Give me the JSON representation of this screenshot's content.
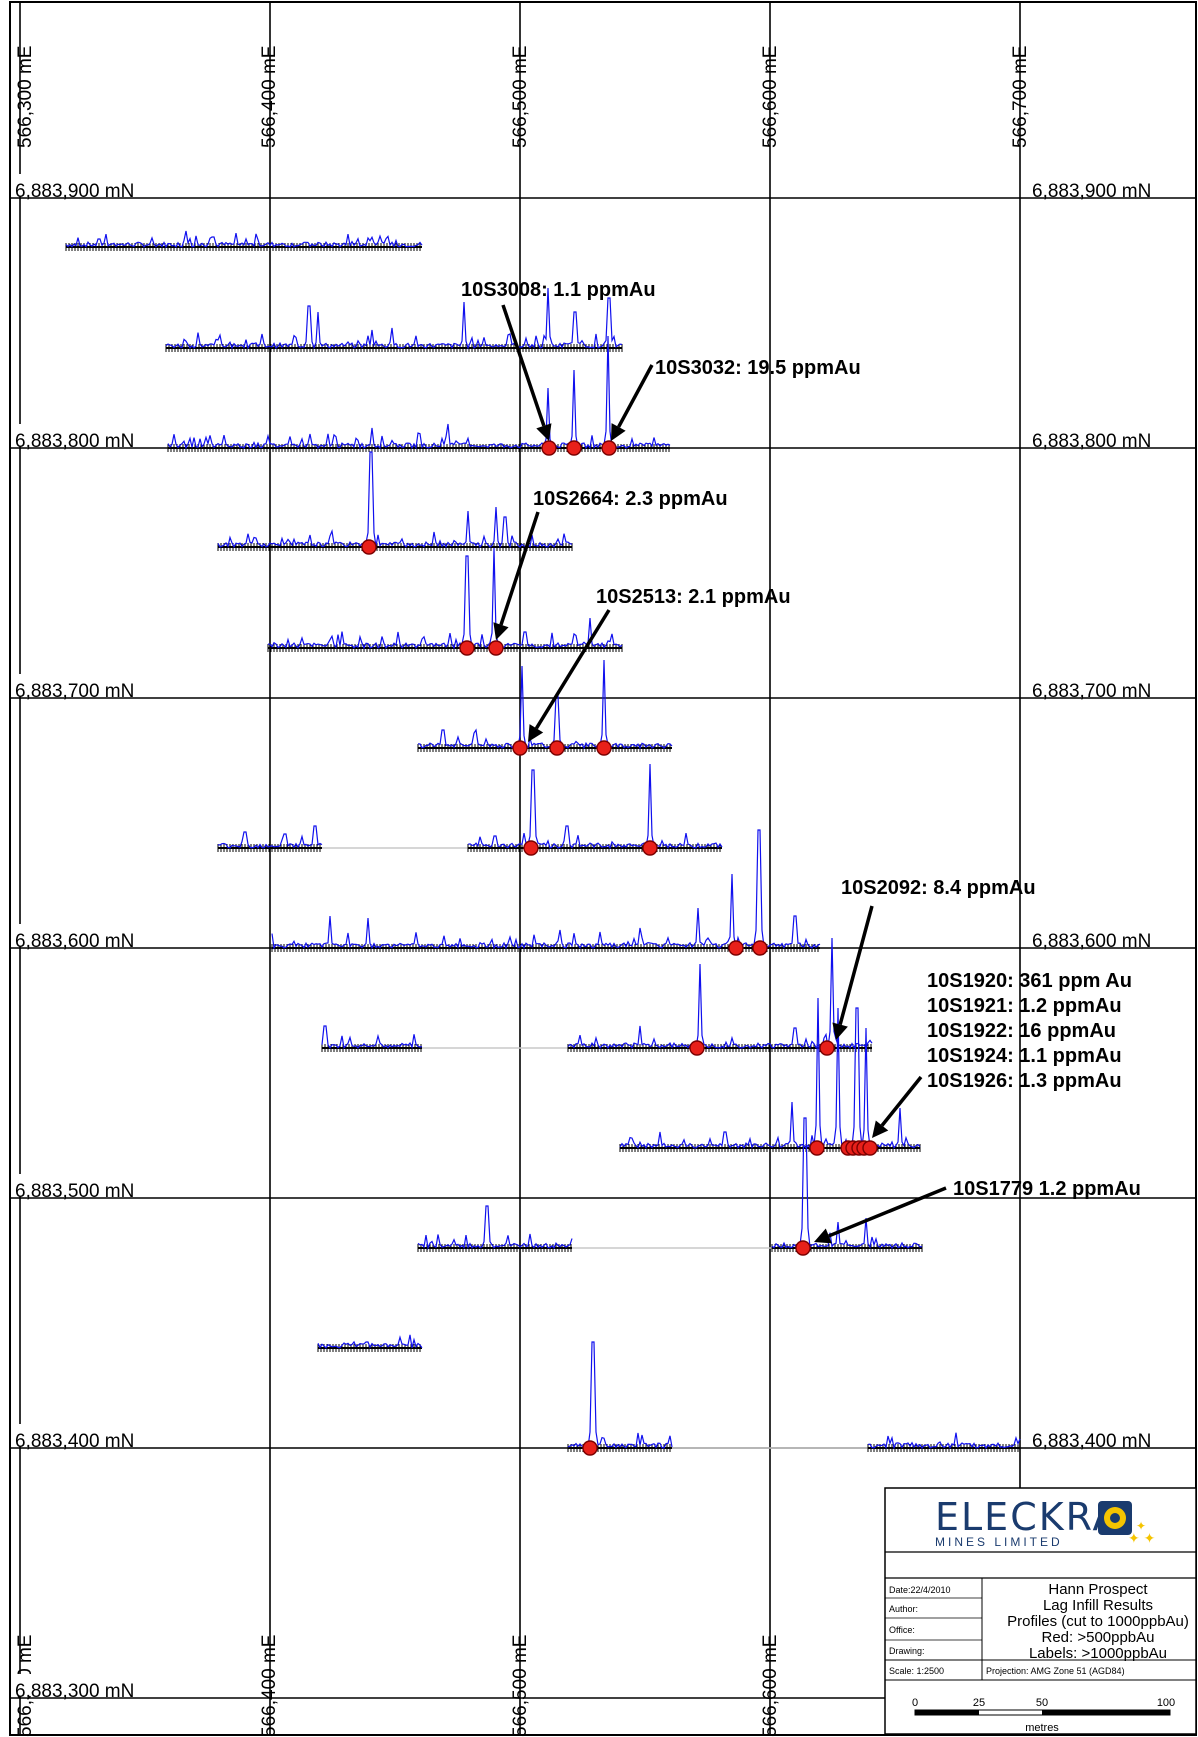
{
  "grid": {
    "easting_labels": [
      {
        "text": "566,300 mE"
      },
      {
        "text": "566,400 mE"
      },
      {
        "text": "566,500 mE"
      },
      {
        "text": "566,600 mE"
      },
      {
        "text": "566,700 mE"
      }
    ],
    "northing_labels": [
      {
        "text": "6,883,900 mN"
      },
      {
        "text": "6,883,800 mN"
      },
      {
        "text": "6,883,700 mN"
      },
      {
        "text": "6,883,600 mN"
      },
      {
        "text": "6,883,500 mN"
      },
      {
        "text": "6,883,400 mN"
      },
      {
        "text": "6,883,300 mN"
      }
    ]
  },
  "sample_labels": [
    {
      "text": "10S3008: 1.1 ppmAu"
    },
    {
      "text": "10S3032: 19.5 ppmAu"
    },
    {
      "text": "10S2664: 2.3 ppmAu"
    },
    {
      "text": "10S2513: 2.1 ppmAu"
    },
    {
      "text": "10S2092: 8.4 ppmAu"
    },
    {
      "text": "10S1920: 361 ppm Au"
    },
    {
      "text": "10S1921: 1.2 ppmAu"
    },
    {
      "text": "10S1922: 16 ppmAu"
    },
    {
      "text": "10S1924: 1.1 ppmAu"
    },
    {
      "text": "10S1926: 1.3 ppmAu"
    },
    {
      "text": "10S1779  1.2 ppmAu"
    }
  ],
  "title_block": {
    "logo_text": "ELECKRA",
    "logo_subtext": "MINES LIMITED",
    "date": "Date:22/4/2010",
    "author": "Author:",
    "office": "Office:",
    "drawing": "Drawing:",
    "scale": "Scale: 1:2500",
    "projection": "Projection: AMG Zone 51 (AGD84)",
    "title_lines": [
      "Hann Prospect",
      "Lag Infill Results",
      "Profiles (cut to 1000ppbAu)",
      "Red: >500ppbAu",
      "Labels: >1000ppbAu"
    ],
    "scale_ticks": [
      "0",
      "25",
      "50",
      "100"
    ],
    "scale_unit": "metres"
  },
  "colors": {
    "profile": "#1010ee",
    "sample_dot": "#e8201a",
    "grid": "#000000"
  }
}
